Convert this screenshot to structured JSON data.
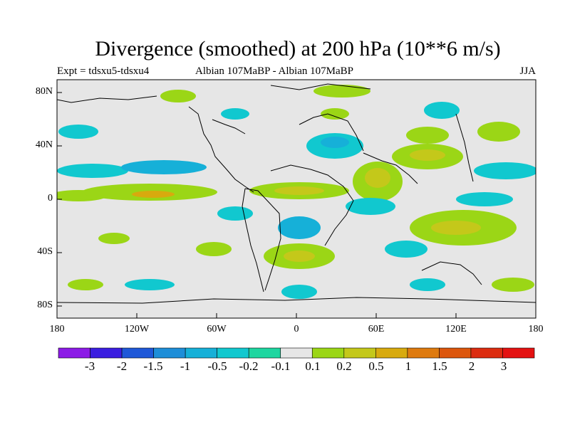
{
  "title": "Divergence (smoothed) at 200 hPa (10**6 m/s)",
  "subtitle_left": "Expt = tdsxu5-tdsxu4",
  "subtitle_center": "Albian   107MaBP - Albian   107MaBP",
  "subtitle_right": "JJA",
  "y_ticks": [
    "80N",
    "40N",
    "0",
    "40S",
    "80S"
  ],
  "x_ticks": [
    "180",
    "120W",
    "60W",
    "0",
    "60E",
    "120E",
    "180"
  ],
  "colorbar": {
    "labels": [
      "-3",
      "-2",
      "-1.5",
      "-1",
      "-0.5",
      "-0.2",
      "-0.1",
      "0.1",
      "0.2",
      "0.5",
      "1",
      "1.5",
      "2",
      "3"
    ],
    "colors": [
      "#8c1be6",
      "#3b1ee0",
      "#1f58d8",
      "#1e8ed8",
      "#16b0d8",
      "#11c8cf",
      "#1ed6a0",
      "#e6e6e6",
      "#9bd616",
      "#c4c81a",
      "#d8aa0e",
      "#de7a0e",
      "#dc560c",
      "#dc2c10",
      "#e41212"
    ]
  },
  "colors": {
    "neutral": "#e6e6e6",
    "coast": "#000000"
  }
}
